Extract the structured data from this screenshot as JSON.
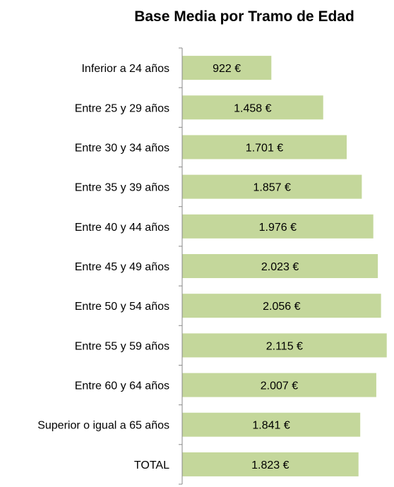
{
  "chart_data": {
    "type": "bar",
    "orientation": "horizontal",
    "title": "Base Media por Tramo de Edad",
    "categories": [
      "Inferior a 24 años",
      "Entre 25 y 29 años",
      "Entre 30 y 34 años",
      "Entre 35 y 39 años",
      "Entre 40 y 44 años",
      "Entre 45 y 49 años",
      "Entre 50 y 54 años",
      "Entre 55 y 59 años",
      "Entre 60 y 64 años",
      "Superior o igual a 65 años",
      "TOTAL"
    ],
    "values": [
      922,
      1458,
      1701,
      1857,
      1976,
      2023,
      2056,
      2115,
      2007,
      1841,
      1823
    ],
    "data_labels": [
      "922 €",
      "1.458 €",
      "1.701 €",
      "1.857 €",
      "1.976 €",
      "2.023 €",
      "2.056 €",
      "2.115 €",
      "2.007 €",
      "1.841 €",
      "1.823 €"
    ],
    "xlim": [
      0,
      2190
    ],
    "xlabel": "",
    "ylabel": "",
    "grid": false,
    "legend": "none",
    "bar_color": "#c4d79b"
  }
}
